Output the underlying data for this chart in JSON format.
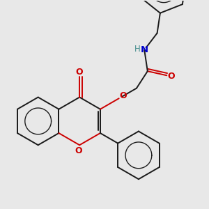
{
  "bg_color": "#e8e8e8",
  "bond_color": "#1a1a1a",
  "o_color": "#cc0000",
  "n_color": "#0000cc",
  "h_color": "#4a9090",
  "bond_width": 1.4,
  "figsize": [
    3.0,
    3.0
  ],
  "dpi": 100,
  "xlim": [
    0,
    10
  ],
  "ylim": [
    0,
    10
  ]
}
